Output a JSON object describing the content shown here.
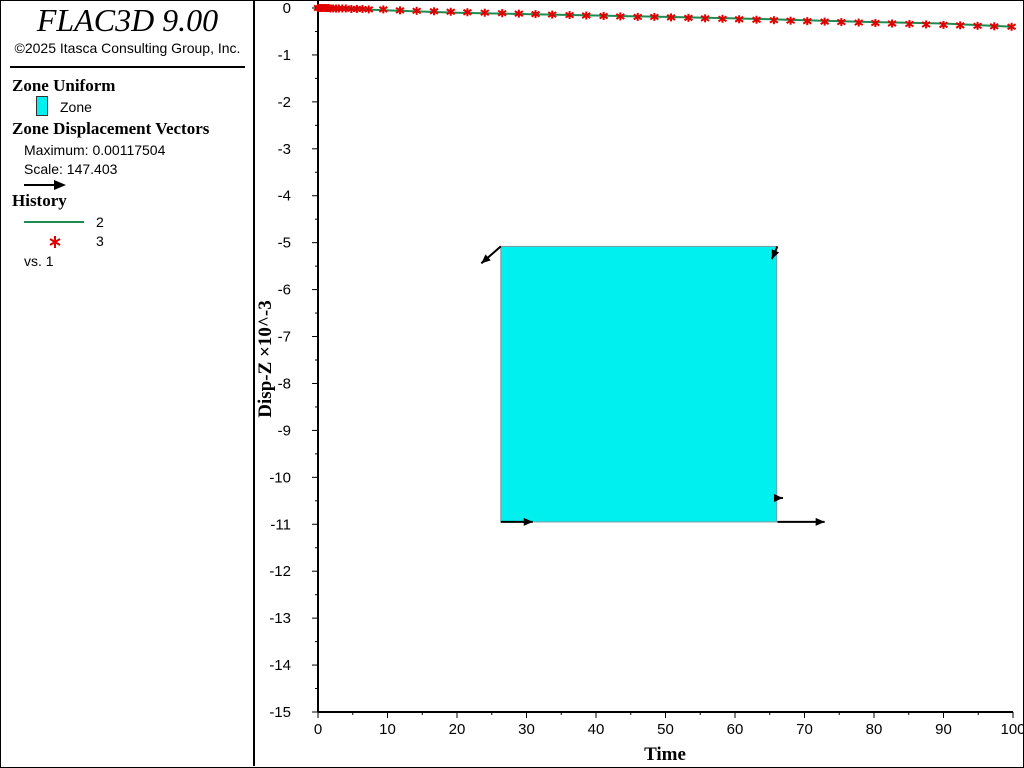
{
  "app": {
    "title": "FLAC3D 9.00",
    "copyright": "©2025 Itasca Consulting Group, Inc."
  },
  "legend": {
    "zone_uniform": {
      "heading": "Zone Uniform",
      "item_label": "Zone",
      "swatch_color": "#00f0f0"
    },
    "displacement_vectors": {
      "heading": "Zone Displacement Vectors",
      "maximum": "Maximum: 0.00117504",
      "scale": "Scale: 147.403",
      "arrow_icon": "arrow-right-icon"
    },
    "history": {
      "heading": "History",
      "items": [
        {
          "label": "2",
          "marker": "line",
          "color": "#1e8c50"
        },
        {
          "label": "3",
          "marker": "asterisk",
          "color": "#e00000"
        }
      ],
      "vs": "vs. 1"
    }
  },
  "chart_data": {
    "type": "line",
    "xlabel": "Time",
    "ylabel": "Disp-Z ×10^-3",
    "xlim": [
      0,
      100
    ],
    "ylim": [
      -15,
      0
    ],
    "x_ticks": [
      0,
      10,
      20,
      30,
      40,
      50,
      60,
      70,
      80,
      90,
      100
    ],
    "y_ticks": [
      0,
      -1,
      -2,
      -3,
      -4,
      -5,
      -6,
      -7,
      -8,
      -9,
      -10,
      -11,
      -12,
      -13,
      -14,
      -15
    ],
    "series": [
      {
        "name": "2",
        "style": "line",
        "color": "#1e8c50",
        "points": [
          [
            0,
            0
          ],
          [
            10,
            -0.05
          ],
          [
            20,
            -0.1
          ],
          [
            30,
            -0.13
          ],
          [
            40,
            -0.16
          ],
          [
            50,
            -0.19
          ],
          [
            60,
            -0.22
          ],
          [
            70,
            -0.26
          ],
          [
            80,
            -0.3
          ],
          [
            90,
            -0.33
          ],
          [
            100,
            -0.4
          ]
        ]
      },
      {
        "name": "3",
        "style": "markers",
        "marker": "asterisk",
        "color": "#e00000",
        "points": [
          [
            0,
            0
          ],
          [
            0.3,
            0
          ],
          [
            0.6,
            0
          ],
          [
            0.9,
            0
          ],
          [
            1.2,
            0
          ],
          [
            1.5,
            0
          ],
          [
            1.8,
            -0.01
          ],
          [
            2.2,
            -0.01
          ],
          [
            2.6,
            -0.01
          ],
          [
            3.0,
            -0.01
          ],
          [
            3.5,
            -0.01
          ],
          [
            4.0,
            -0.01
          ],
          [
            4.8,
            -0.02
          ],
          [
            5.6,
            -0.02
          ],
          [
            6.4,
            -0.02
          ],
          [
            7.3,
            -0.03
          ],
          [
            9.4,
            -0.03
          ],
          [
            11.8,
            -0.05
          ],
          [
            14.2,
            -0.06
          ],
          [
            16.7,
            -0.07
          ],
          [
            19.1,
            -0.08
          ],
          [
            21.5,
            -0.09
          ],
          [
            24.0,
            -0.1
          ],
          [
            26.5,
            -0.11
          ],
          [
            28.9,
            -0.12
          ],
          [
            31.3,
            -0.13
          ],
          [
            33.7,
            -0.14
          ],
          [
            36.2,
            -0.15
          ],
          [
            38.6,
            -0.16
          ],
          [
            41.1,
            -0.17
          ],
          [
            43.5,
            -0.18
          ],
          [
            46.0,
            -0.19
          ],
          [
            48.4,
            -0.19
          ],
          [
            50.8,
            -0.2
          ],
          [
            53.3,
            -0.21
          ],
          [
            55.7,
            -0.22
          ],
          [
            58.2,
            -0.23
          ],
          [
            60.6,
            -0.24
          ],
          [
            63.1,
            -0.25
          ],
          [
            65.6,
            -0.26
          ],
          [
            68.0,
            -0.27
          ],
          [
            70.4,
            -0.28
          ],
          [
            72.9,
            -0.29
          ],
          [
            75.3,
            -0.3
          ],
          [
            77.8,
            -0.31
          ],
          [
            80.2,
            -0.32
          ],
          [
            82.6,
            -0.33
          ],
          [
            85.1,
            -0.34
          ],
          [
            87.5,
            -0.35
          ],
          [
            90.0,
            -0.36
          ],
          [
            92.4,
            -0.37
          ],
          [
            94.9,
            -0.38
          ],
          [
            97.3,
            -0.39
          ],
          [
            99.8,
            -0.4
          ]
        ]
      }
    ],
    "overlay": {
      "zone_fill": "#00f0f0",
      "zone_bounds": {
        "x": [
          26.3,
          66.0
        ],
        "y": [
          -5.08,
          -10.95
        ]
      },
      "vectors": [
        {
          "from": [
            26.3,
            -5.08
          ],
          "to": [
            23.5,
            -5.44
          ]
        },
        {
          "from": [
            66.1,
            -5.08
          ],
          "to": [
            65.3,
            -5.35
          ]
        },
        {
          "from": [
            26.3,
            -10.95
          ],
          "to": [
            30.9,
            -10.95
          ]
        },
        {
          "from": [
            66.1,
            -10.95
          ],
          "to": [
            72.9,
            -10.95
          ]
        },
        {
          "from": [
            66.2,
            -10.44
          ],
          "to": [
            66.9,
            -10.44
          ]
        }
      ]
    }
  }
}
